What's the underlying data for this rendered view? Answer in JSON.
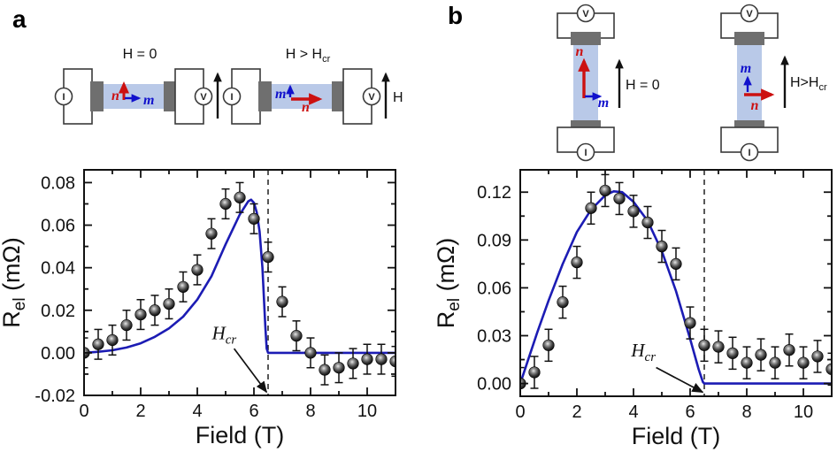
{
  "colors": {
    "curve_blue": "#1c1cb4",
    "axis_black": "#111111",
    "sample_bar_fill": "#b9c9e8",
    "contact_pad_gray": "#6f6f6f",
    "neel_red": "#cc1111",
    "moment_blue": "#1111cc"
  },
  "panels": {
    "a": {
      "label": "a",
      "schematic": {
        "left": {
          "state_label": "H = 0",
          "current_meter": "I",
          "voltage_meter": "V",
          "field_arrow_label": "H",
          "neel_label": "n",
          "moment_label": "m"
        },
        "right": {
          "state_label_main": "H > H",
          "state_label_sub": "cr",
          "current_meter": "I",
          "voltage_meter": "V",
          "field_arrow_label": "H",
          "neel_label": "n",
          "moment_label": "m"
        }
      }
    },
    "b": {
      "label": "b",
      "schematic": {
        "left": {
          "state_label": "H = 0",
          "current_meter": "I",
          "voltage_meter": "V",
          "neel_label": "n",
          "moment_label": "m"
        },
        "right": {
          "state_label_main": "H>H",
          "state_label_sub": "cr",
          "current_meter": "I",
          "voltage_meter": "V",
          "neel_label": "n",
          "moment_label": "m"
        }
      }
    }
  },
  "chart_data": [
    {
      "panel": "a",
      "type": "scatter",
      "xlabel": "Field (T)",
      "ylabel": {
        "symbol": "R",
        "subscript": "el",
        "units": " (mΩ)"
      },
      "xlim": [
        0,
        11
      ],
      "ylim": [
        -0.02,
        0.086
      ],
      "xticks": [
        0,
        2,
        4,
        6,
        8,
        10
      ],
      "xminor_ticks": [
        1,
        3,
        5,
        7,
        9,
        11
      ],
      "yticks": [
        -0.02,
        0,
        0.02,
        0.04,
        0.06,
        0.08
      ],
      "ytick_labels": [
        "-0.02",
        "0.00",
        "0.02",
        "0.04",
        "0.06",
        "0.08"
      ],
      "yminor_ticks": [
        -0.01,
        0.01,
        0.03,
        0.05,
        0.07
      ],
      "grid": false,
      "legend": "none",
      "data_series": {
        "name": "measured",
        "marker": "sphere",
        "x": [
          0,
          0.5,
          1,
          1.5,
          2,
          2.5,
          3,
          3.5,
          4,
          4.5,
          5,
          5.5,
          6,
          6.5,
          7,
          7.5,
          8,
          8.5,
          9,
          9.5,
          10,
          10.5,
          11
        ],
        "y": [
          0.0,
          0.004,
          0.006,
          0.013,
          0.018,
          0.02,
          0.023,
          0.031,
          0.039,
          0.056,
          0.07,
          0.073,
          0.063,
          0.045,
          0.024,
          0.008,
          0.0,
          -0.008,
          -0.007,
          -0.005,
          -0.003,
          -0.003,
          -0.004
        ],
        "yerr": 0.007
      },
      "fit_curve": {
        "name": "model",
        "points": [
          [
            0,
            0
          ],
          [
            0.5,
            0.0005
          ],
          [
            1,
            0.0012
          ],
          [
            1.5,
            0.0025
          ],
          [
            2,
            0.0045
          ],
          [
            2.5,
            0.0075
          ],
          [
            3,
            0.0115
          ],
          [
            3.5,
            0.017
          ],
          [
            4,
            0.025
          ],
          [
            4.5,
            0.036
          ],
          [
            5,
            0.051
          ],
          [
            5.5,
            0.065
          ],
          [
            5.8,
            0.0712
          ],
          [
            5.9,
            0.072
          ],
          [
            6.0,
            0.0705
          ],
          [
            6.1,
            0.066
          ],
          [
            6.2,
            0.057
          ],
          [
            6.3,
            0.04
          ],
          [
            6.4,
            0.013
          ],
          [
            6.45,
            0.002
          ],
          [
            6.5,
            0
          ],
          [
            11,
            0
          ]
        ]
      },
      "critical_field": {
        "x": 6.5,
        "label_main": "H",
        "label_sub": "cr",
        "label_pos": [
          4.95,
          0.0065
        ],
        "arrow_from": [
          5.3,
          0.002
        ],
        "arrow_to": [
          6.45,
          -0.0185
        ]
      }
    },
    {
      "panel": "b",
      "type": "scatter",
      "xlabel": "Field (T)",
      "ylabel": {
        "symbol": "R",
        "subscript": "el",
        "units": " (mΩ)"
      },
      "xlim": [
        0,
        11
      ],
      "ylim": [
        -0.008,
        0.134
      ],
      "xticks": [
        0,
        2,
        4,
        6,
        8,
        10
      ],
      "xminor_ticks": [
        1,
        3,
        5,
        7,
        9,
        11
      ],
      "yticks": [
        0,
        0.03,
        0.06,
        0.09,
        0.12
      ],
      "ytick_labels": [
        "0.00",
        "0.03",
        "0.06",
        "0.09",
        "0.12"
      ],
      "yminor_ticks": [
        0.015,
        0.045,
        0.075,
        0.105
      ],
      "grid": false,
      "legend": "none",
      "data_series": {
        "name": "measured",
        "marker": "sphere",
        "x": [
          0,
          0.5,
          1,
          1.5,
          2,
          2.5,
          3,
          3.5,
          4,
          4.5,
          5,
          5.5,
          6,
          6.5,
          7,
          7.5,
          8,
          8.5,
          9,
          9.5,
          10,
          10.5,
          11
        ],
        "y": [
          0.0,
          0.007,
          0.024,
          0.051,
          0.076,
          0.11,
          0.121,
          0.116,
          0.108,
          0.101,
          0.086,
          0.075,
          0.038,
          0.024,
          0.023,
          0.019,
          0.013,
          0.018,
          0.013,
          0.021,
          0.013,
          0.017,
          0.009
        ],
        "yerr": 0.01
      },
      "fit_curve": {
        "name": "model",
        "points": [
          [
            0,
            0
          ],
          [
            0.3,
            0.016
          ],
          [
            0.6,
            0.032
          ],
          [
            1,
            0.052
          ],
          [
            1.5,
            0.075
          ],
          [
            2,
            0.095
          ],
          [
            2.5,
            0.109
          ],
          [
            3,
            0.118
          ],
          [
            3.3,
            0.1205
          ],
          [
            3.6,
            0.12
          ],
          [
            4,
            0.114
          ],
          [
            4.5,
            0.102
          ],
          [
            5,
            0.083
          ],
          [
            5.5,
            0.058
          ],
          [
            6,
            0.028
          ],
          [
            6.3,
            0.009
          ],
          [
            6.45,
            0.001
          ],
          [
            6.5,
            0
          ],
          [
            11,
            0
          ]
        ]
      },
      "critical_field": {
        "x": 6.5,
        "label_main": "H",
        "label_sub": "cr",
        "label_pos": [
          4.35,
          0.017
        ],
        "arrow_from": [
          4.8,
          0.01
        ],
        "arrow_to": [
          6.45,
          -0.0055
        ]
      }
    }
  ]
}
